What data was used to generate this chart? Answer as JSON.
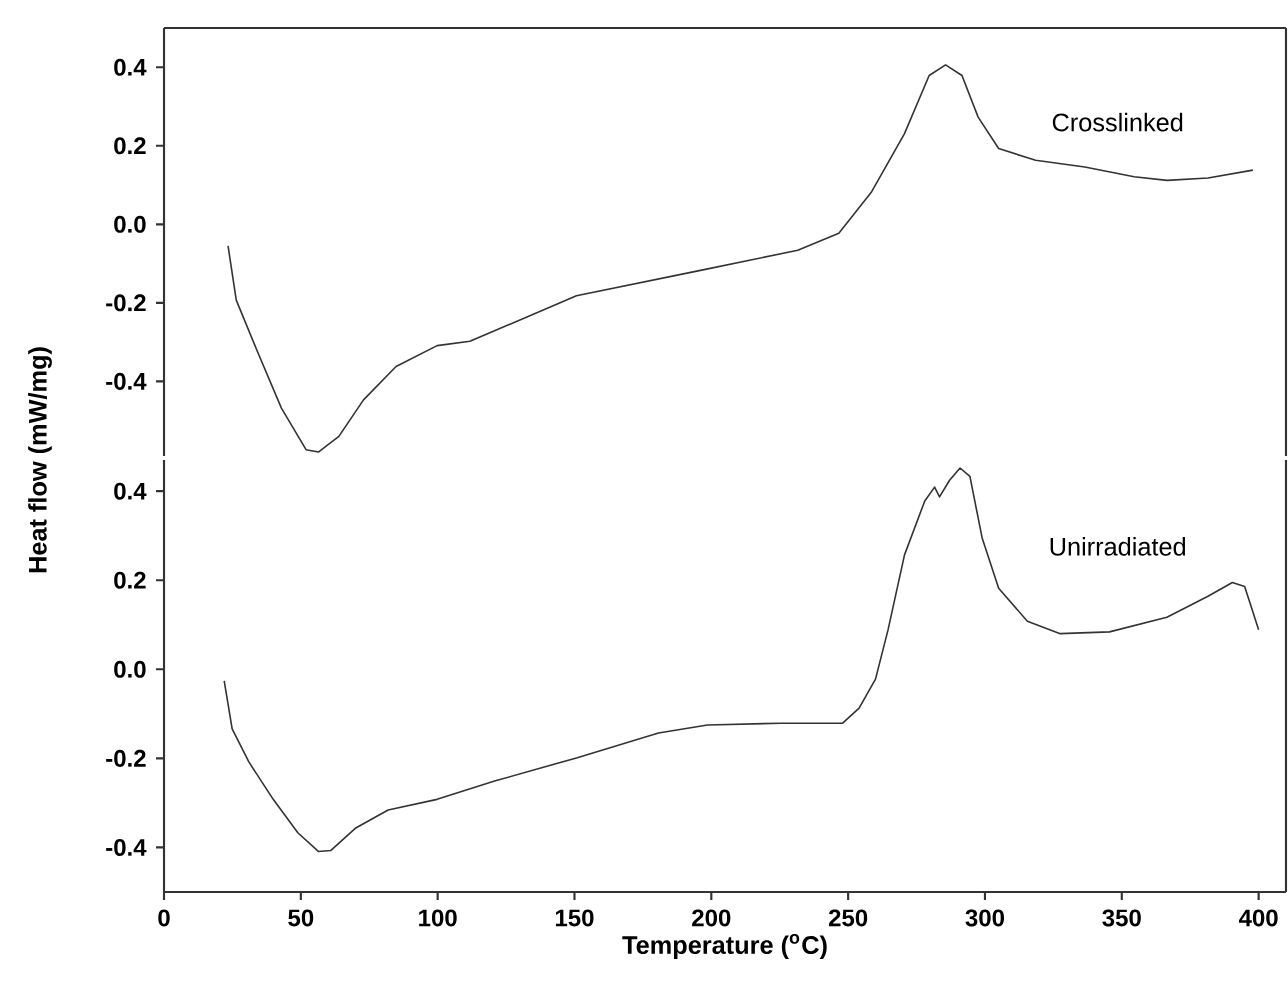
{
  "chart_data": [
    {
      "type": "line",
      "ylabel": "Heat flow (mW/mg)",
      "xlim": [
        0,
        410
      ],
      "ylim": [
        -0.59,
        0.5
      ],
      "yticks": [
        -0.4,
        -0.2,
        {
          "value": 0,
          "label": "0.0"
        },
        0.2,
        0.4
      ],
      "tick_labels": "y",
      "series": [
        {
          "name": "Crosslinked",
          "color": "#333333",
          "x": [
            23.4,
            26.4,
            33.9,
            42.9,
            51.9,
            56.4,
            63.9,
            72.9,
            84.8,
            99.8,
            111.8,
            150.7,
            195.6,
            231.6,
            246.6,
            258.6,
            270.6,
            279.6,
            285.6,
            291.6,
            297.5,
            305,
            318.5,
            336.5,
            354.5,
            366.5,
            381.5,
            397.9
          ],
          "values": [
            -0.055,
            -0.193,
            -0.32,
            -0.468,
            -0.574,
            -0.58,
            -0.54,
            -0.447,
            -0.362,
            -0.309,
            -0.298,
            -0.182,
            -0.118,
            -0.066,
            -0.023,
            0.083,
            0.231,
            0.379,
            0.406,
            0.379,
            0.273,
            0.193,
            0.163,
            0.146,
            0.121,
            0.112,
            0.118,
            0.138
          ]
        }
      ]
    },
    {
      "type": "line",
      "xlabel": "Temperature ($^{o}$C)",
      "xlim": [
        0,
        410
      ],
      "xticks": [
        0,
        50,
        100,
        150,
        200,
        250,
        300,
        350,
        400
      ],
      "ylim": [
        -0.5,
        0.47
      ],
      "yticks": [
        -0.4,
        -0.2,
        {
          "value": 0,
          "label": "0.0"
        },
        0.2,
        0.4
      ],
      "series": [
        {
          "name": "Unirradiated",
          "color": "#333333",
          "x": [
            22,
            24.9,
            31,
            39.9,
            48.9,
            56.4,
            60.9,
            69.9,
            81.9,
            99.8,
            120.8,
            150.7,
            180.7,
            198.6,
            225.6,
            248,
            254,
            260,
            264.6,
            270.6,
            278,
            281.6,
            283.4,
            287,
            290.9,
            294.5,
            299,
            305,
            315.5,
            327.5,
            345.5,
            366.5,
            381.5,
            390.4,
            394.9,
            400
          ],
          "values": [
            -0.026,
            -0.134,
            -0.208,
            -0.292,
            -0.367,
            -0.409,
            -0.407,
            -0.357,
            -0.316,
            -0.292,
            -0.251,
            -0.199,
            -0.143,
            -0.125,
            -0.121,
            -0.121,
            -0.087,
            -0.022,
            0.089,
            0.257,
            0.378,
            0.409,
            0.387,
            0.424,
            0.452,
            0.433,
            0.294,
            0.182,
            0.108,
            0.08,
            0.084,
            0.117,
            0.164,
            0.195,
            0.186,
            0.089
          ]
        }
      ]
    }
  ]
}
